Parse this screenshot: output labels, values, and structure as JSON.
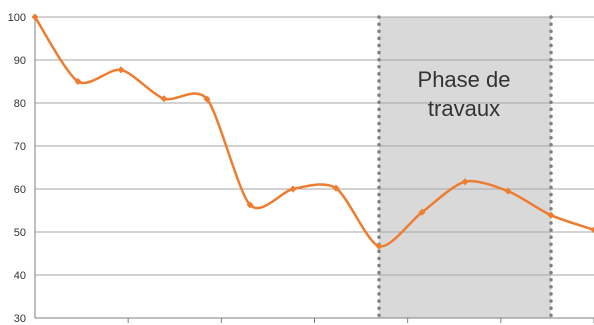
{
  "chart_data": {
    "type": "line",
    "title": "",
    "xlabel": "",
    "ylabel": "",
    "ylim": [
      30,
      100
    ],
    "yticks": [
      30,
      40,
      50,
      60,
      70,
      80,
      90,
      100
    ],
    "x": [
      0,
      1,
      2,
      3,
      4,
      5,
      6,
      7,
      8,
      9,
      10,
      11,
      12,
      13
    ],
    "series": [
      {
        "values": [
          100,
          85,
          87.7,
          81,
          80.9,
          56.3,
          60,
          60.2,
          46.7,
          54.6,
          61.7,
          59.5,
          53.9,
          50.5
        ]
      }
    ],
    "grid": "horizontal",
    "legend": "none",
    "annotation": {
      "label": [
        "Phase de",
        "travaux"
      ],
      "x_start": 8,
      "x_end": 12
    },
    "colors": {
      "line": "#ed7d31",
      "band": "#d9d9d9",
      "band_border": "#808080",
      "grid": "#a6a6a6",
      "axis": "#7f7f7f"
    }
  }
}
